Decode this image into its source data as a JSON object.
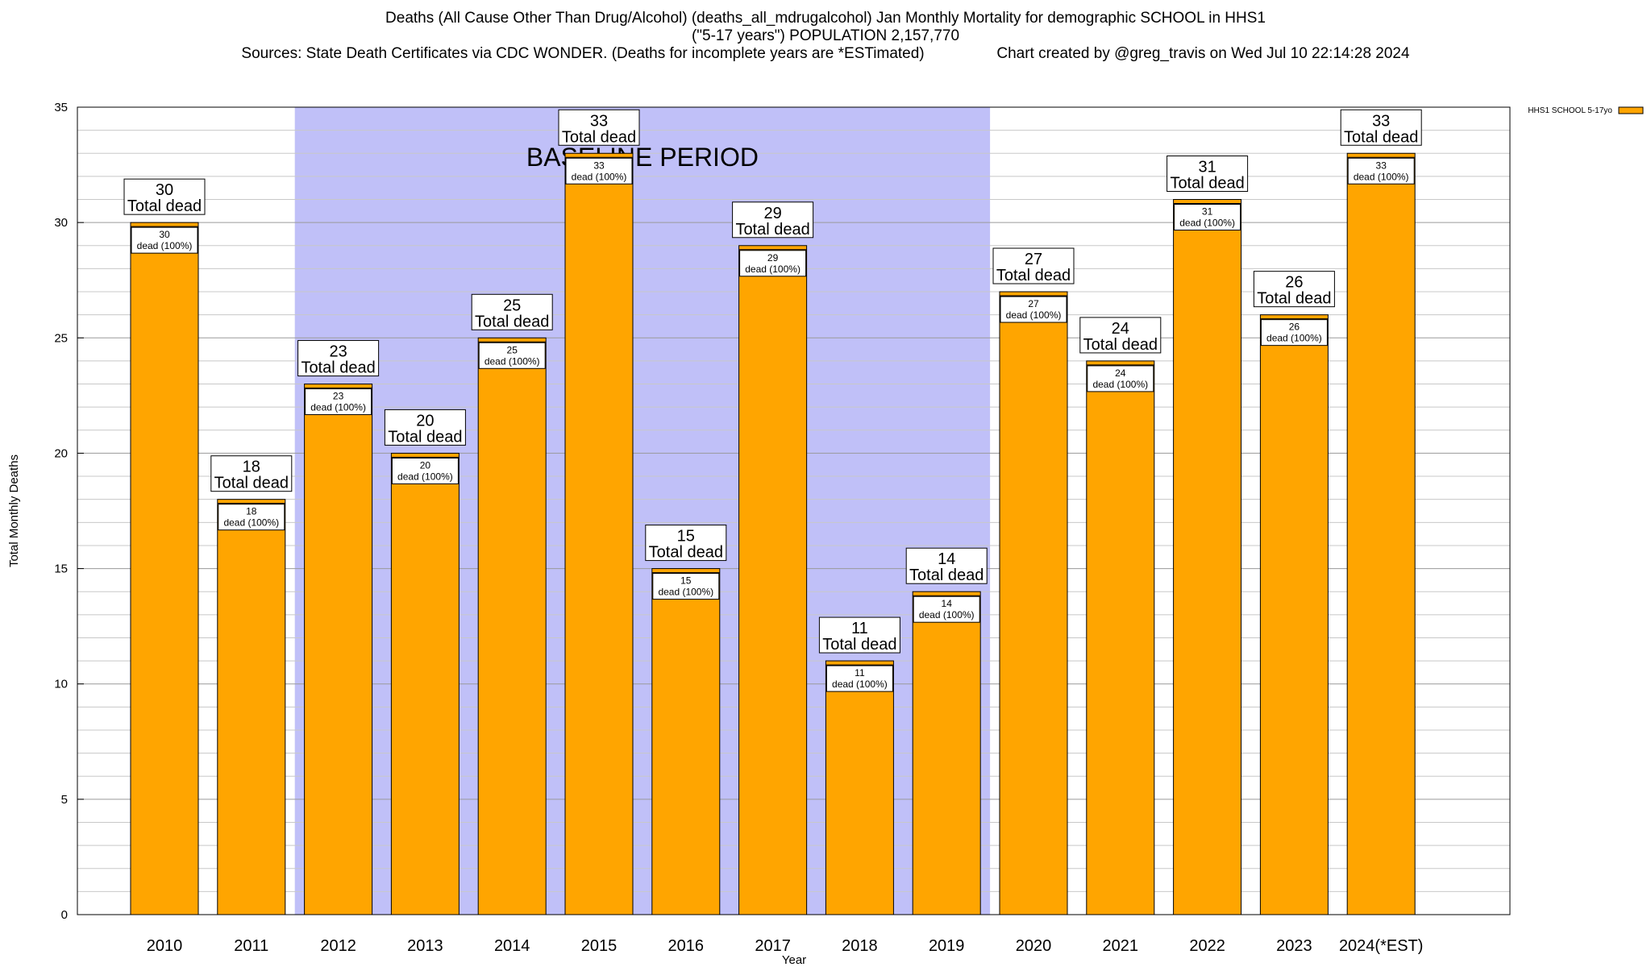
{
  "title": {
    "line1": "Deaths (All Cause Other Than Drug/Alcohol) (deaths_all_mdrugalcohol) Jan Monthly Mortality for demographic SCHOOL in HHS1",
    "line2": "(\"5-17 years\") POPULATION 2,157,770",
    "line3": "Sources: State Death Certificates via CDC WONDER. (Deaths for incomplete years are *ESTimated)                 Chart created by @greg_travis on Wed Jul 10 22:14:28 2024"
  },
  "chart_data": {
    "type": "bar",
    "categories": [
      "2010",
      "2011",
      "2012",
      "2013",
      "2014",
      "2015",
      "2016",
      "2017",
      "2018",
      "2019",
      "2020",
      "2021",
      "2022",
      "2023",
      "2024(*EST)"
    ],
    "series": [
      {
        "name": "HHS1 SCHOOL 5-17yo",
        "values": [
          30,
          18,
          23,
          20,
          25,
          33,
          15,
          29,
          11,
          14,
          27,
          24,
          31,
          26,
          33
        ]
      }
    ],
    "xlabel": "Year",
    "ylabel": "Total Monthly Deaths",
    "ylim": [
      0,
      35
    ],
    "yticks": [
      0,
      5,
      10,
      15,
      20,
      25,
      30,
      35
    ],
    "minor_step": 1,
    "grid": true,
    "legend": "top-right",
    "bar_color": "#ffa500",
    "baseline_color": "#c0c0f8",
    "baseline": {
      "label": "BASELINE PERIOD",
      "from": "2012",
      "to": "2019"
    },
    "top_label_suffix": "Total dead",
    "inner_label_suffix": "dead (100%)"
  }
}
